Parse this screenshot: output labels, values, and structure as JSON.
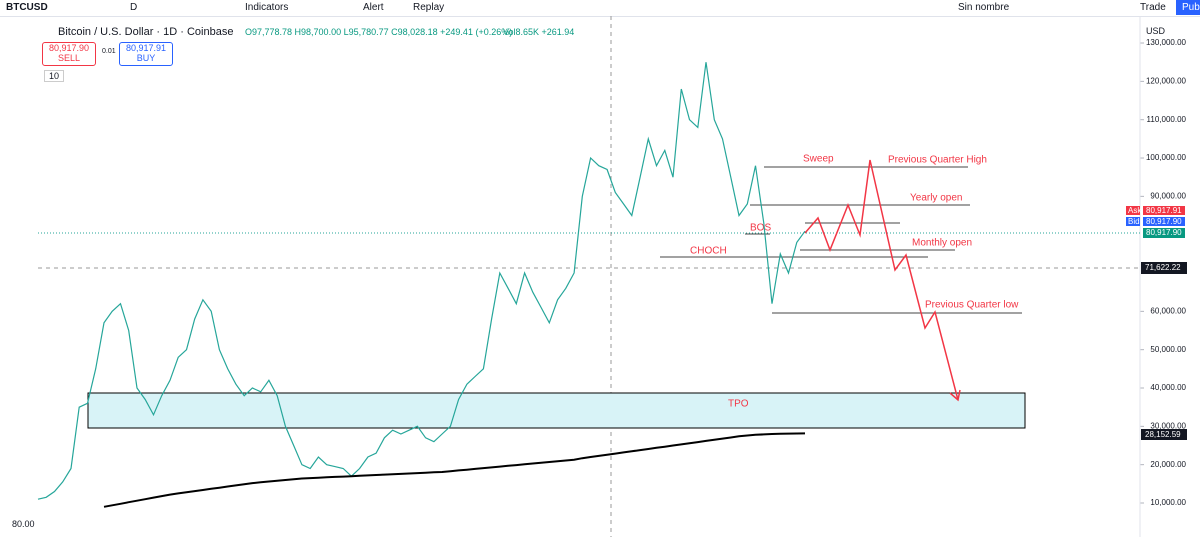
{
  "toolbar": {
    "symbol": "BTCUSD",
    "interval": "D",
    "indicators": "Indicators",
    "alert": "Alert",
    "replay": "Replay",
    "layout_name": "Sin nombre",
    "trade": "Trade",
    "publish": "Pub"
  },
  "legend": {
    "title": "Bitcoin / U.S. Dollar · 1D · Coinbase",
    "ohlc": "O97,778.78 H98,700.00 L95,780.77 C98,028.18 +249.41 (+0.26%)",
    "volume": "Vol8.65K +261.94"
  },
  "order": {
    "sell_price": "80,917.90",
    "sell": "SELL",
    "quantity": "0.01",
    "buy_price": "80,917.91",
    "buy": "BUY",
    "indicator_count": "10"
  },
  "price_scale": {
    "currency": "USD",
    "ask_label": "Ask",
    "ask": "80,917.91",
    "bid_label": "Bid",
    "bid": "80,917.90",
    "last": "80,917.90",
    "crosshair": "71,622.22",
    "ma": "28,152.59"
  },
  "bottom_label": "80.00",
  "annotations": [
    "Sweep",
    "Previous Quarter High",
    "Yearly open",
    "BOS",
    "Monthly open",
    "CHOCH",
    "Previous Quarter low",
    "TPO"
  ],
  "chart_data": {
    "type": "line",
    "series": [
      {
        "color": "#26a69a",
        "values": [
          11000,
          11500,
          13000,
          15500,
          19000,
          35000,
          36000,
          45000,
          57000,
          60000,
          62000,
          55000,
          40000,
          37000,
          33000,
          38000,
          42000,
          48000,
          50000,
          58000,
          63000,
          60000,
          50000,
          45000,
          41000,
          38000,
          40000,
          39000,
          42000,
          38000,
          30000,
          25000,
          20000,
          19000,
          22000,
          20000,
          19500,
          19000,
          17000,
          19000,
          22000,
          23000,
          27000,
          29000,
          28000,
          29000,
          30000,
          27000,
          26000,
          28000,
          30000,
          37000,
          41000,
          43000,
          45000,
          58000,
          70000,
          66000,
          62000,
          70000,
          65000,
          61000,
          57000,
          63000,
          66000,
          70000,
          90000,
          100000,
          98000,
          97000,
          91000,
          88000,
          85000,
          95000,
          105000,
          98000,
          102000,
          95000,
          118000,
          110000,
          108000,
          125000,
          110000,
          105000,
          95000,
          85000,
          88000,
          98000,
          83000,
          62000,
          75000,
          70000,
          78000,
          80918
        ]
      },
      {
        "color": "#000000",
        "values": [
          null,
          null,
          null,
          null,
          null,
          null,
          null,
          null,
          9000,
          9400,
          9800,
          10200,
          10600,
          11000,
          11400,
          11800,
          12200,
          12500,
          12800,
          13100,
          13400,
          13700,
          14000,
          14300,
          14600,
          14900,
          15200,
          15400,
          15600,
          15800,
          16000,
          16200,
          16400,
          16500,
          16600,
          16700,
          16800,
          16900,
          17000,
          17100,
          17200,
          17300,
          17400,
          17500,
          17600,
          17700,
          17800,
          17900,
          18000,
          18100,
          18300,
          18500,
          18700,
          18900,
          19100,
          19300,
          19500,
          19700,
          19900,
          20100,
          20300,
          20500,
          20700,
          20900,
          21100,
          21300,
          21700,
          22000,
          22300,
          22600,
          22900,
          23200,
          23500,
          23800,
          24100,
          24400,
          24700,
          25000,
          25300,
          25600,
          25900,
          26200,
          26500,
          26800,
          27100,
          27400,
          27600,
          27800,
          27900,
          28000,
          28050,
          28100,
          28130,
          28152
        ]
      }
    ],
    "ylim": [
      6350,
      137050
    ],
    "yticks": [
      {
        "value": 10000,
        "label": "10,000.00"
      },
      {
        "value": 20000,
        "label": "20,000.00"
      },
      {
        "value": 30000,
        "label": "30,000.00"
      },
      {
        "value": 40000,
        "label": "40,000.00"
      },
      {
        "value": 50000,
        "label": "50,000.00"
      },
      {
        "value": 60000,
        "label": "60,000.00"
      },
      {
        "value": 90000,
        "label": "90,000.00"
      },
      {
        "value": 100000,
        "label": "100,000.00"
      },
      {
        "value": 110000,
        "label": "110,000.00"
      },
      {
        "value": 120000,
        "label": "120,000.00"
      },
      {
        "value": 130000,
        "label": "130,000.00"
      }
    ]
  }
}
